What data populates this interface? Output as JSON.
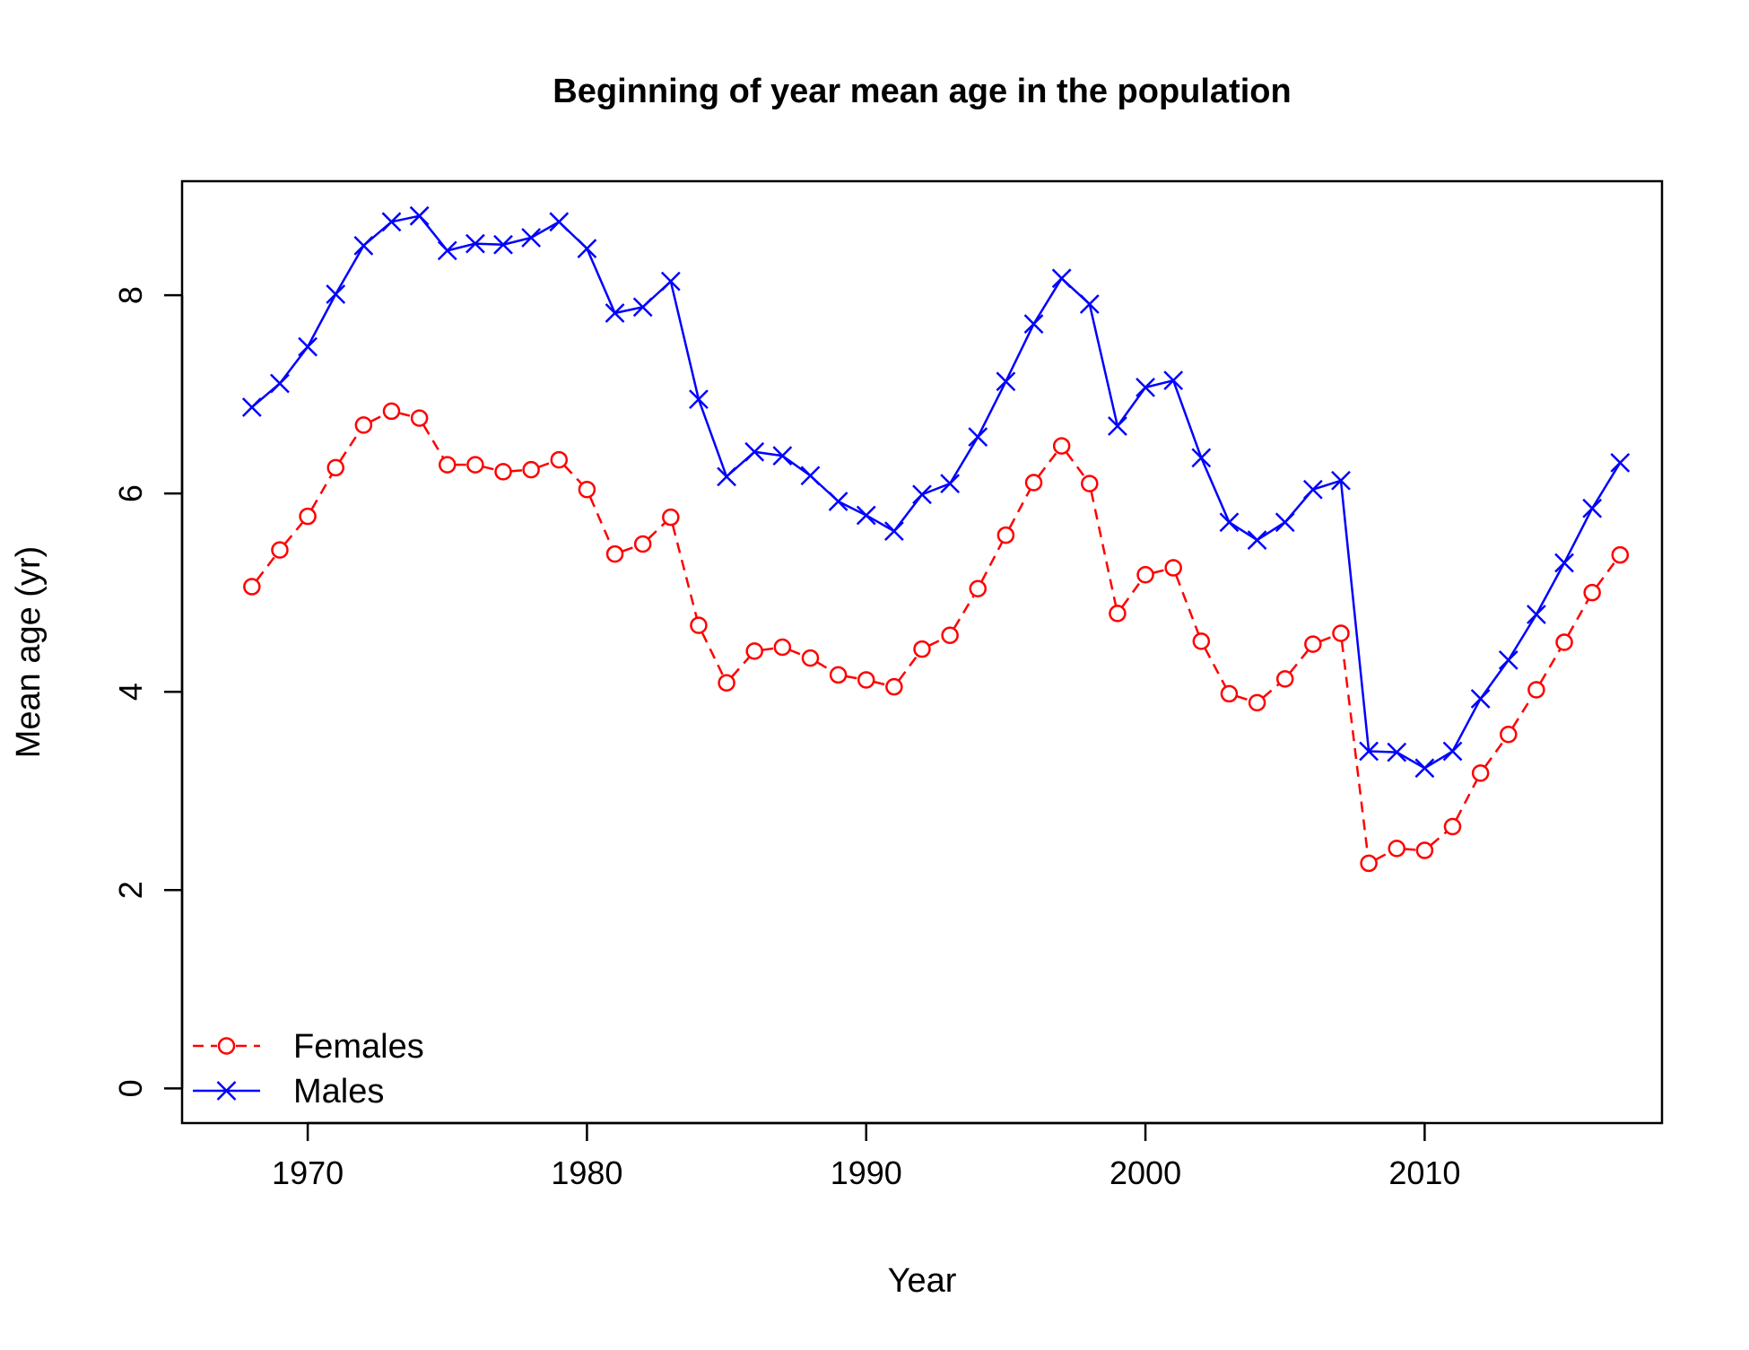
{
  "chart_data": {
    "type": "line",
    "title": "Beginning of year mean age in the population",
    "xlabel": "Year",
    "ylabel": "Mean age (yr)",
    "xlim": [
      1965.5,
      2018.5
    ],
    "ylim": [
      -0.35,
      9.15
    ],
    "x_ticks": [
      1970,
      1980,
      1990,
      2000,
      2010
    ],
    "x_tick_labels": [
      "1970",
      "1980",
      "1990",
      "2000",
      "2010"
    ],
    "y_ticks": [
      0,
      2,
      4,
      6,
      8
    ],
    "y_tick_labels": [
      "0",
      "2",
      "4",
      "6",
      "8"
    ],
    "grid": false,
    "legend_position": "bottom-left",
    "x": [
      1968,
      1969,
      1970,
      1971,
      1972,
      1973,
      1974,
      1975,
      1976,
      1977,
      1978,
      1979,
      1980,
      1981,
      1982,
      1983,
      1984,
      1985,
      1986,
      1987,
      1988,
      1989,
      1990,
      1991,
      1992,
      1993,
      1994,
      1995,
      1996,
      1997,
      1998,
      1999,
      2000,
      2001,
      2002,
      2003,
      2004,
      2005,
      2006,
      2007,
      2008,
      2009,
      2010,
      2011,
      2012,
      2013,
      2014,
      2015,
      2016,
      2017
    ],
    "series": [
      {
        "name": "Females",
        "color": "#ff0000",
        "line_style": "dashed",
        "marker": "circle",
        "values": [
          5.06,
          5.43,
          5.77,
          6.26,
          6.69,
          6.83,
          6.76,
          6.29,
          6.29,
          6.22,
          6.24,
          6.34,
          6.04,
          5.39,
          5.49,
          5.76,
          4.67,
          4.09,
          4.41,
          4.45,
          4.34,
          4.17,
          4.12,
          4.05,
          4.43,
          4.57,
          5.04,
          5.58,
          6.11,
          6.48,
          6.1,
          4.79,
          5.18,
          5.25,
          4.51,
          3.98,
          3.89,
          4.13,
          4.48,
          4.59,
          2.27,
          2.42,
          2.4,
          2.64,
          3.18,
          3.57,
          4.02,
          4.5,
          5.0,
          5.38
        ]
      },
      {
        "name": "Males",
        "color": "#0000ff",
        "line_style": "solid",
        "marker": "x",
        "values": [
          6.87,
          7.11,
          7.48,
          8.01,
          8.5,
          8.74,
          8.8,
          8.45,
          8.52,
          8.51,
          8.58,
          8.74,
          8.47,
          7.82,
          7.88,
          8.14,
          6.95,
          6.17,
          6.42,
          6.38,
          6.18,
          5.92,
          5.78,
          5.62,
          5.99,
          6.1,
          6.57,
          7.13,
          7.71,
          8.17,
          7.91,
          6.68,
          7.07,
          7.14,
          6.36,
          5.71,
          5.53,
          5.71,
          6.04,
          6.13,
          3.4,
          3.39,
          3.23,
          3.4,
          3.93,
          4.32,
          4.78,
          5.3,
          5.85,
          6.31
        ]
      }
    ]
  }
}
